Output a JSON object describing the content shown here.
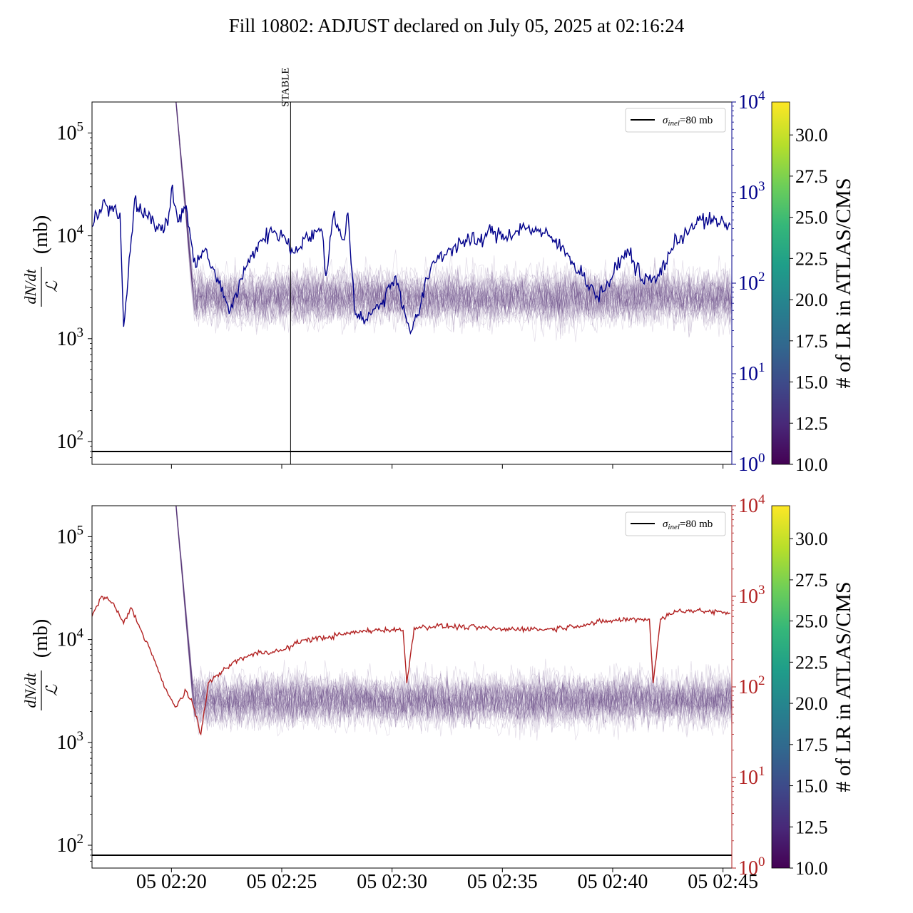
{
  "title": "Fill 10802: ADJUST declared on July 05, 2025 at 02:16:24",
  "colors": {
    "top_series": "#00008b",
    "bottom_series": "#b22222",
    "bundle_lines": "#5b3a7a",
    "sigma_line": "#000000",
    "colormap": [
      "#440154",
      "#482878",
      "#3e4989",
      "#31688e",
      "#26828e",
      "#1f9e89",
      "#35b779",
      "#6ece58",
      "#b5de2b",
      "#fde725"
    ]
  },
  "chart_data": [
    {
      "type": "line",
      "panel": "top",
      "ylabel_left": "(mb)",
      "ylabel_frac_num": "dN/dt",
      "ylabel_frac_den": "ℒ",
      "yscale_left": "log",
      "ylim_left": [
        60,
        200000
      ],
      "yticks_left": [
        "10^2",
        "10^3",
        "10^4",
        "10^5"
      ],
      "yscale_right": "log",
      "ylim_right": [
        1,
        10000
      ],
      "yticks_right": [
        "10^0",
        "10^1",
        "10^2",
        "10^3",
        "10^4"
      ],
      "xlim": [
        "02:16:24",
        "02:45:24"
      ],
      "vline": {
        "x": "02:25:24",
        "label": "STABLE"
      },
      "hline": {
        "y": 80,
        "name": "σinel=80 mb"
      },
      "legend_placement": "top-right",
      "legend": {
        "symbol": "σ",
        "subscript": "inel",
        "text": "=80 mb"
      },
      "colorbar": {
        "label": "# of LR in ATLAS/CMS",
        "range": [
          10.0,
          32.0
        ],
        "ticks": [
          "10.0",
          "12.5",
          "15.0",
          "17.5",
          "20.0",
          "22.5",
          "25.0",
          "27.5",
          "30.0"
        ]
      },
      "series_right_axis": [
        {
          "x": "02:16:24",
          "y": 420
        },
        {
          "x": "02:17:00",
          "y": 760
        },
        {
          "x": "02:17:40",
          "y": 600
        },
        {
          "x": "02:17:50",
          "y": 33
        },
        {
          "x": "02:18:20",
          "y": 850
        },
        {
          "x": "02:18:50",
          "y": 560
        },
        {
          "x": "02:19:20",
          "y": 420
        },
        {
          "x": "02:19:50",
          "y": 430
        },
        {
          "x": "02:20:00",
          "y": 1100
        },
        {
          "x": "02:20:20",
          "y": 480
        },
        {
          "x": "02:20:40",
          "y": 720
        },
        {
          "x": "02:21:00",
          "y": 170
        },
        {
          "x": "02:21:30",
          "y": 230
        },
        {
          "x": "02:22:00",
          "y": 120
        },
        {
          "x": "02:22:40",
          "y": 50
        },
        {
          "x": "02:23:20",
          "y": 140
        },
        {
          "x": "02:24:00",
          "y": 290
        },
        {
          "x": "02:24:40",
          "y": 380
        },
        {
          "x": "02:25:10",
          "y": 310
        },
        {
          "x": "02:25:30",
          "y": 220
        },
        {
          "x": "02:26:10",
          "y": 330
        },
        {
          "x": "02:26:50",
          "y": 370
        },
        {
          "x": "02:27:00",
          "y": 120
        },
        {
          "x": "02:27:20",
          "y": 550
        },
        {
          "x": "02:27:50",
          "y": 300
        },
        {
          "x": "02:28:00",
          "y": 600
        },
        {
          "x": "02:28:20",
          "y": 45
        },
        {
          "x": "02:28:50",
          "y": 40
        },
        {
          "x": "02:29:30",
          "y": 60
        },
        {
          "x": "02:30:10",
          "y": 120
        },
        {
          "x": "02:30:50",
          "y": 28
        },
        {
          "x": "02:31:10",
          "y": 45
        },
        {
          "x": "02:31:50",
          "y": 170
        },
        {
          "x": "02:32:40",
          "y": 240
        },
        {
          "x": "02:33:20",
          "y": 300
        },
        {
          "x": "02:34:00",
          "y": 280
        },
        {
          "x": "02:34:20",
          "y": 370
        },
        {
          "x": "02:35:10",
          "y": 330
        },
        {
          "x": "02:36:00",
          "y": 420
        },
        {
          "x": "02:36:40",
          "y": 370
        },
        {
          "x": "02:37:20",
          "y": 300
        },
        {
          "x": "02:38:00",
          "y": 200
        },
        {
          "x": "02:38:40",
          "y": 120
        },
        {
          "x": "02:39:20",
          "y": 70
        },
        {
          "x": "02:40:00",
          "y": 120
        },
        {
          "x": "02:40:40",
          "y": 240
        },
        {
          "x": "02:41:20",
          "y": 110
        },
        {
          "x": "02:42:00",
          "y": 110
        },
        {
          "x": "02:42:40",
          "y": 240
        },
        {
          "x": "02:43:20",
          "y": 380
        },
        {
          "x": "02:44:00",
          "y": 500
        },
        {
          "x": "02:45:20",
          "y": 440
        }
      ]
    },
    {
      "type": "line",
      "panel": "bottom",
      "ylabel_left": "(mb)",
      "ylabel_frac_num": "dN/dt",
      "ylabel_frac_den": "ℒ",
      "yscale_left": "log",
      "ylim_left": [
        60,
        200000
      ],
      "yticks_left": [
        "10^2",
        "10^3",
        "10^4",
        "10^5"
      ],
      "yscale_right": "log",
      "ylim_right": [
        1,
        10000
      ],
      "yticks_right": [
        "10^0",
        "10^1",
        "10^2",
        "10^3",
        "10^4"
      ],
      "xlim": [
        "02:16:24",
        "02:45:24"
      ],
      "xticks": [
        "05 02:20",
        "05 02:25",
        "05 02:30",
        "05 02:35",
        "05 02:40",
        "05 02:45"
      ],
      "hline": {
        "y": 80,
        "name": "σinel=80 mb"
      },
      "legend_placement": "top-right",
      "legend": {
        "symbol": "σ",
        "subscript": "inel",
        "text": "=80 mb"
      },
      "colorbar": {
        "label": "# of LR in ATLAS/CMS",
        "range": [
          10.0,
          32.0
        ],
        "ticks": [
          "10.0",
          "12.5",
          "15.0",
          "17.5",
          "20.0",
          "22.5",
          "25.0",
          "27.5",
          "30.0"
        ]
      },
      "series_right_axis": [
        {
          "x": "02:16:24",
          "y": 600
        },
        {
          "x": "02:16:50",
          "y": 1000
        },
        {
          "x": "02:17:20",
          "y": 850
        },
        {
          "x": "02:17:50",
          "y": 500
        },
        {
          "x": "02:18:10",
          "y": 750
        },
        {
          "x": "02:18:40",
          "y": 400
        },
        {
          "x": "02:19:10",
          "y": 220
        },
        {
          "x": "02:19:40",
          "y": 100
        },
        {
          "x": "02:20:10",
          "y": 60
        },
        {
          "x": "02:20:40",
          "y": 90
        },
        {
          "x": "02:21:00",
          "y": 60
        },
        {
          "x": "02:21:20",
          "y": 30
        },
        {
          "x": "02:21:40",
          "y": 110
        },
        {
          "x": "02:22:20",
          "y": 150
        },
        {
          "x": "02:23:00",
          "y": 200
        },
        {
          "x": "02:24:00",
          "y": 240
        },
        {
          "x": "02:25:00",
          "y": 250
        },
        {
          "x": "02:26:00",
          "y": 330
        },
        {
          "x": "02:27:00",
          "y": 350
        },
        {
          "x": "02:28:00",
          "y": 390
        },
        {
          "x": "02:29:00",
          "y": 420
        },
        {
          "x": "02:30:00",
          "y": 430
        },
        {
          "x": "02:30:30",
          "y": 420
        },
        {
          "x": "02:30:40",
          "y": 110
        },
        {
          "x": "02:31:00",
          "y": 450
        },
        {
          "x": "02:32:00",
          "y": 470
        },
        {
          "x": "02:33:00",
          "y": 460
        },
        {
          "x": "02:34:00",
          "y": 450
        },
        {
          "x": "02:35:00",
          "y": 430
        },
        {
          "x": "02:36:00",
          "y": 440
        },
        {
          "x": "02:37:00",
          "y": 430
        },
        {
          "x": "02:38:00",
          "y": 460
        },
        {
          "x": "02:39:00",
          "y": 500
        },
        {
          "x": "02:40:00",
          "y": 540
        },
        {
          "x": "02:41:00",
          "y": 560
        },
        {
          "x": "02:41:40",
          "y": 560
        },
        {
          "x": "02:41:50",
          "y": 110
        },
        {
          "x": "02:42:10",
          "y": 560
        },
        {
          "x": "02:43:00",
          "y": 700
        },
        {
          "x": "02:44:00",
          "y": 690
        },
        {
          "x": "02:45:20",
          "y": 650
        }
      ]
    }
  ]
}
